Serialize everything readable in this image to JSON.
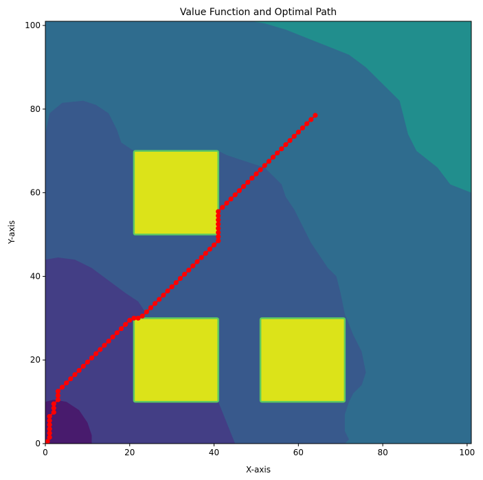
{
  "chart_data": {
    "type": "heatmap",
    "title": "Value Function and Optimal Path",
    "xlabel": "X-axis",
    "ylabel": "Y-axis",
    "xlim": [
      0,
      101
    ],
    "ylim": [
      0,
      101
    ],
    "xticks": [
      0,
      20,
      40,
      60,
      80,
      100
    ],
    "yticks": [
      0,
      20,
      40,
      60,
      80,
      100
    ],
    "grid": false,
    "colormap": "viridis",
    "colors": {
      "level_1": "#481b6d",
      "level_2": "#433e85",
      "level_3": "#38598c",
      "level_4": "#2f6c8e",
      "level_5": "#218e8d",
      "obstacle": "#dce319",
      "obstacle_edge": "#5ec962",
      "path": "#ff0000"
    },
    "obstacles": [
      {
        "x0": 21,
        "y0": 50,
        "x1": 41,
        "y1": 70
      },
      {
        "x0": 21,
        "y0": 10,
        "x1": 41,
        "y1": 30
      },
      {
        "x0": 51,
        "y0": 10,
        "x1": 71,
        "y1": 30
      }
    ],
    "contour_regions": [
      {
        "level": "level_5",
        "points": [
          [
            49,
            101
          ],
          [
            101,
            101
          ],
          [
            101,
            60
          ],
          [
            96,
            62
          ],
          [
            93,
            66
          ],
          [
            88,
            70
          ],
          [
            86,
            74
          ],
          [
            85,
            78
          ],
          [
            84,
            82
          ],
          [
            80,
            86
          ],
          [
            76,
            90
          ],
          [
            72,
            93
          ],
          [
            67,
            95
          ],
          [
            62,
            97
          ],
          [
            57,
            99
          ],
          [
            52,
            100.5
          ]
        ]
      },
      {
        "level": "level_3",
        "points": [
          [
            0,
            74
          ],
          [
            1,
            79
          ],
          [
            4,
            81.5
          ],
          [
            9,
            82
          ],
          [
            12,
            81
          ],
          [
            15,
            79
          ],
          [
            17,
            75
          ],
          [
            18,
            72
          ],
          [
            21,
            70
          ],
          [
            41,
            70
          ],
          [
            43,
            69
          ],
          [
            46,
            68
          ],
          [
            49,
            67
          ],
          [
            52,
            66
          ],
          [
            54,
            64
          ],
          [
            56,
            62
          ],
          [
            57,
            59
          ],
          [
            59,
            56
          ],
          [
            61,
            52
          ],
          [
            63,
            48
          ],
          [
            65,
            45
          ],
          [
            67,
            42
          ],
          [
            69,
            40
          ],
          [
            70,
            36
          ],
          [
            71,
            31
          ],
          [
            73,
            26
          ],
          [
            75,
            22
          ],
          [
            76,
            17
          ],
          [
            75,
            14
          ],
          [
            73,
            12
          ],
          [
            72,
            10
          ],
          [
            71,
            7
          ],
          [
            71,
            3
          ],
          [
            72,
            1
          ],
          [
            71,
            0
          ],
          [
            45,
            0
          ],
          [
            43,
            5
          ],
          [
            41,
            9
          ],
          [
            0,
            9
          ]
        ]
      },
      {
        "level": "level_2",
        "points": [
          [
            0,
            0
          ],
          [
            0,
            44
          ],
          [
            3,
            44.5
          ],
          [
            7,
            44
          ],
          [
            11,
            42
          ],
          [
            15,
            39
          ],
          [
            19,
            36
          ],
          [
            22,
            34
          ],
          [
            24,
            31
          ],
          [
            21,
            30
          ],
          [
            21,
            10
          ],
          [
            41,
            10
          ],
          [
            43,
            5
          ],
          [
            45,
            0
          ]
        ]
      },
      {
        "level": "level_1",
        "points": [
          [
            0,
            0
          ],
          [
            0,
            10
          ],
          [
            2,
            10.5
          ],
          [
            5,
            10
          ],
          [
            8,
            8
          ],
          [
            10,
            5
          ],
          [
            11,
            2
          ],
          [
            11,
            0
          ]
        ]
      }
    ],
    "path_points": [
      [
        0.5,
        0.5
      ],
      [
        1,
        1.5
      ],
      [
        1,
        2.5
      ],
      [
        1,
        3.5
      ],
      [
        1,
        4.5
      ],
      [
        1,
        5.5
      ],
      [
        1,
        6.5
      ],
      [
        2,
        7.5
      ],
      [
        2,
        8.5
      ],
      [
        2,
        9.5
      ],
      [
        3,
        10.5
      ],
      [
        3,
        11.5
      ],
      [
        3,
        12.5
      ],
      [
        4,
        13.5
      ],
      [
        5,
        14.5
      ],
      [
        6,
        15.5
      ],
      [
        7,
        16.5
      ],
      [
        8,
        17.5
      ],
      [
        9,
        18.5
      ],
      [
        10,
        19.5
      ],
      [
        11,
        20.5
      ],
      [
        12,
        21.5
      ],
      [
        13,
        22.5
      ],
      [
        14,
        23.5
      ],
      [
        15,
        24.5
      ],
      [
        16,
        25.5
      ],
      [
        17,
        26.5
      ],
      [
        18,
        27.5
      ],
      [
        19,
        28.5
      ],
      [
        20,
        29.5
      ],
      [
        21,
        30
      ],
      [
        22,
        30
      ],
      [
        23,
        30.5
      ],
      [
        24,
        31.5
      ],
      [
        25,
        32.5
      ],
      [
        26,
        33.5
      ],
      [
        27,
        34.5
      ],
      [
        28,
        35.5
      ],
      [
        29,
        36.5
      ],
      [
        30,
        37.5
      ],
      [
        31,
        38.5
      ],
      [
        32,
        39.5
      ],
      [
        33,
        40.5
      ],
      [
        34,
        41.5
      ],
      [
        35,
        42.5
      ],
      [
        36,
        43.5
      ],
      [
        37,
        44.5
      ],
      [
        38,
        45.5
      ],
      [
        39,
        46.5
      ],
      [
        40,
        47.5
      ],
      [
        41,
        48.5
      ],
      [
        41,
        49.5
      ],
      [
        41,
        50.5
      ],
      [
        41,
        51.5
      ],
      [
        41,
        52.5
      ],
      [
        41,
        53.5
      ],
      [
        41,
        54.5
      ],
      [
        41,
        55.5
      ],
      [
        42,
        56.5
      ],
      [
        43,
        57.5
      ],
      [
        44,
        58.5
      ],
      [
        45,
        59.5
      ],
      [
        46,
        60.5
      ],
      [
        47,
        61.5
      ],
      [
        48,
        62.5
      ],
      [
        49,
        63.5
      ],
      [
        50,
        64.5
      ],
      [
        51,
        65.5
      ],
      [
        52,
        66.5
      ],
      [
        53,
        67.5
      ],
      [
        54,
        68.5
      ],
      [
        55,
        69.5
      ],
      [
        56,
        70.5
      ],
      [
        57,
        71.5
      ],
      [
        58,
        72.5
      ],
      [
        59,
        73.5
      ],
      [
        60,
        74.5
      ],
      [
        61,
        75.5
      ],
      [
        62,
        76.5
      ],
      [
        63,
        77.5
      ],
      [
        64,
        78.5
      ]
    ]
  }
}
